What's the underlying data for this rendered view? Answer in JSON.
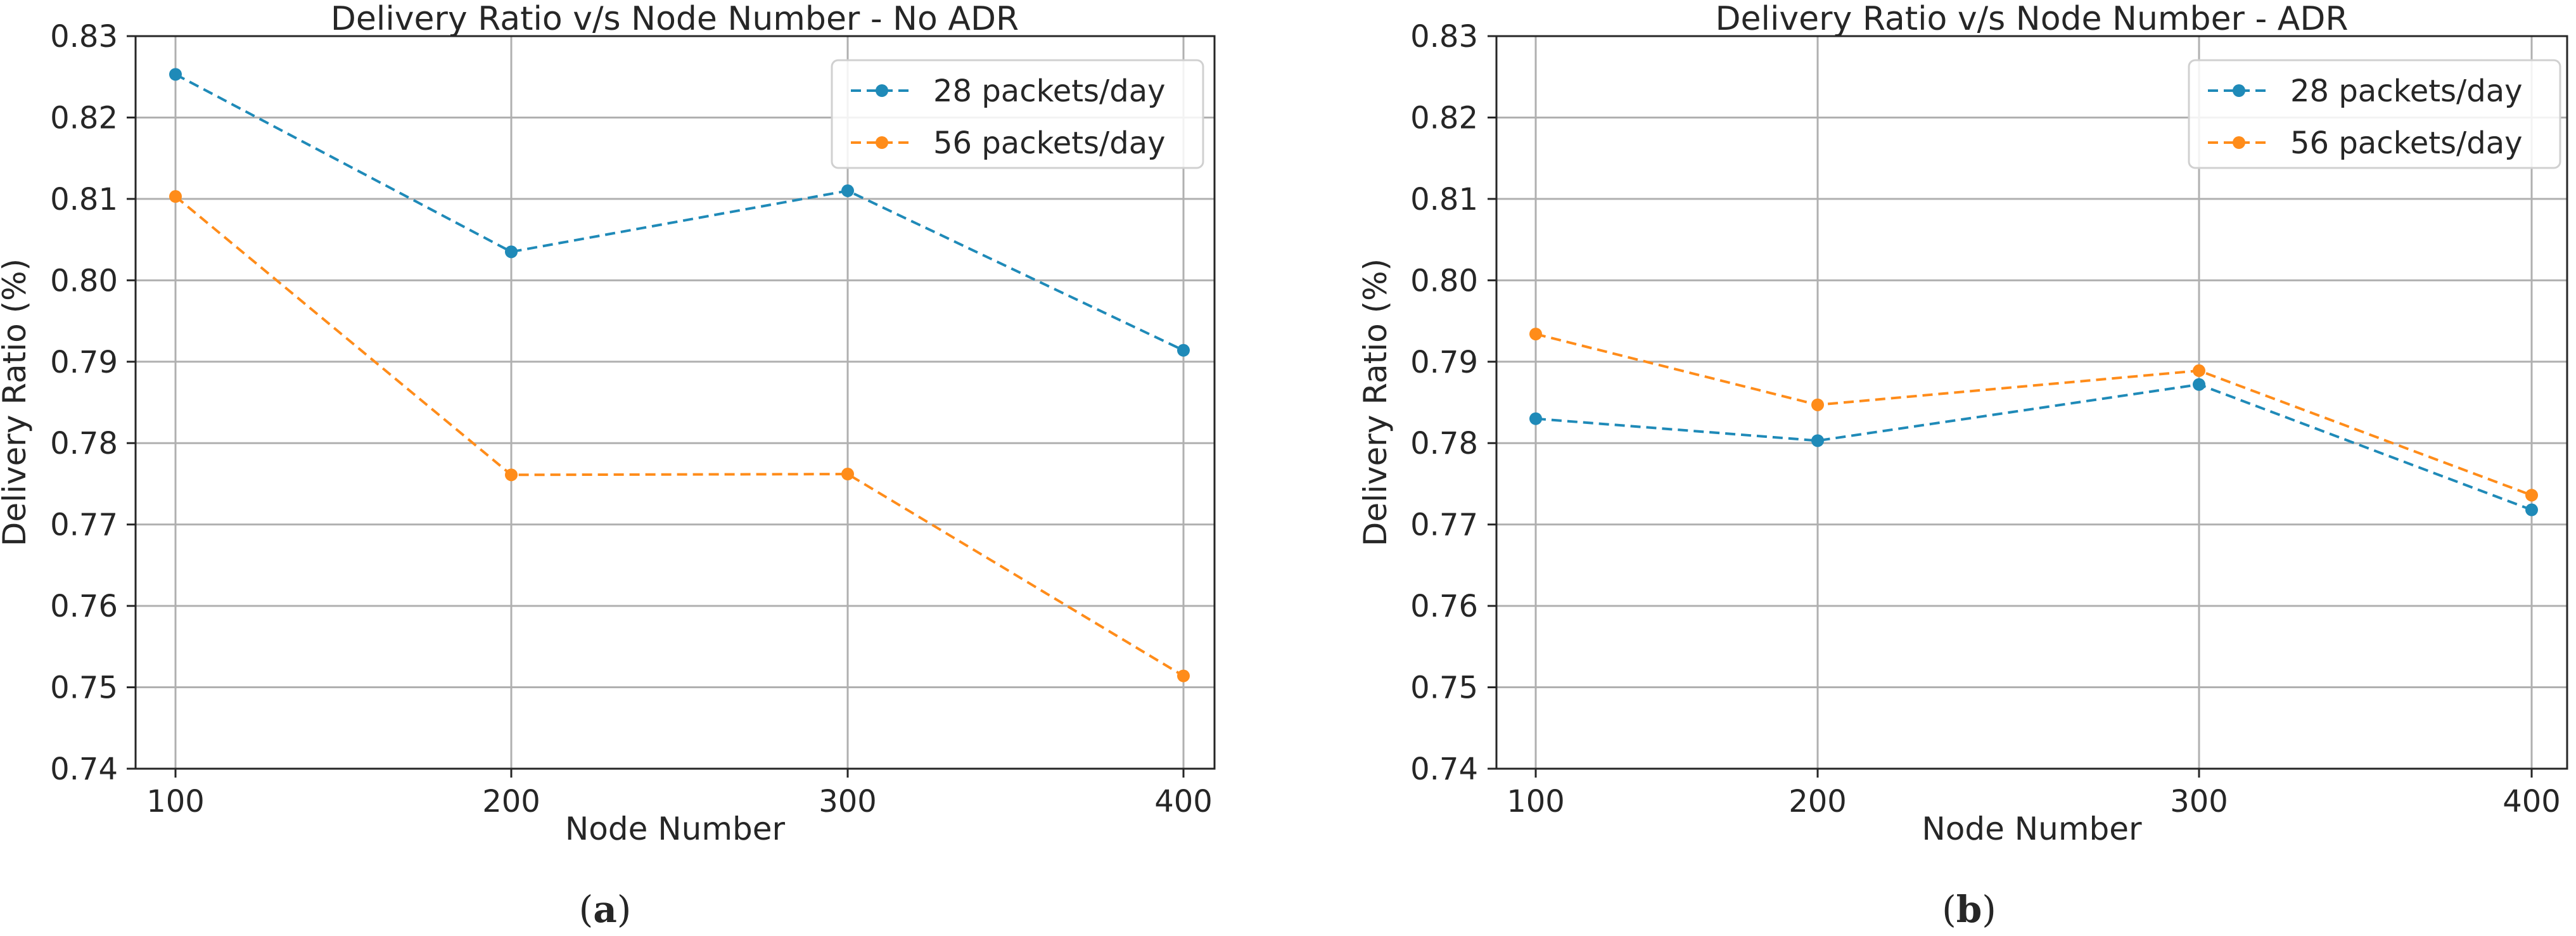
{
  "chart_data": [
    {
      "type": "line",
      "title": "Delivery Ratio v/s Node Number - No ADR",
      "xlabel": "Node Number",
      "ylabel": "Delivery Ratio (%)",
      "x": [
        100,
        200,
        300,
        400
      ],
      "x_tick_labels": [
        "100",
        "200",
        "300",
        "400"
      ],
      "ylim": [
        0.74,
        0.83
      ],
      "y_tick_values": [
        0.74,
        0.75,
        0.76,
        0.77,
        0.78,
        0.79,
        0.8,
        0.81,
        0.82,
        0.83
      ],
      "y_tick_labels": [
        "0.74",
        "0.75",
        "0.76",
        "0.77",
        "0.78",
        "0.79",
        "0.80",
        "0.81",
        "0.82",
        "0.83"
      ],
      "grid": true,
      "legend_position": "top-right",
      "panel_label": "a",
      "series": [
        {
          "name": "28 packets/day",
          "color": "#1f8ab8",
          "values": [
            0.8253,
            0.8035,
            0.811,
            0.7914
          ]
        },
        {
          "name": "56 packets/day",
          "color": "#ff8c1a",
          "values": [
            0.8103,
            0.7761,
            0.7762,
            0.7514
          ]
        }
      ]
    },
    {
      "type": "line",
      "title": "Delivery Ratio v/s Node Number - ADR",
      "xlabel": "Node Number",
      "ylabel": "Delivery Ratio (%)",
      "x": [
        100,
        200,
        300,
        400
      ],
      "x_tick_labels": [
        "100",
        "200",
        "300",
        "400"
      ],
      "ylim": [
        0.74,
        0.83
      ],
      "y_tick_values": [
        0.74,
        0.75,
        0.76,
        0.77,
        0.78,
        0.79,
        0.8,
        0.81,
        0.82,
        0.83
      ],
      "y_tick_labels": [
        "0.74",
        "0.75",
        "0.76",
        "0.77",
        "0.78",
        "0.79",
        "0.80",
        "0.81",
        "0.82",
        "0.83"
      ],
      "grid": true,
      "legend_position": "top-right",
      "panel_label": "b",
      "series": [
        {
          "name": "28 packets/day",
          "color": "#1f8ab8",
          "values": [
            0.783,
            0.7803,
            0.7872,
            0.7718
          ]
        },
        {
          "name": "56 packets/day",
          "color": "#ff8c1a",
          "values": [
            0.7934,
            0.7847,
            0.7889,
            0.7736
          ]
        }
      ]
    }
  ]
}
